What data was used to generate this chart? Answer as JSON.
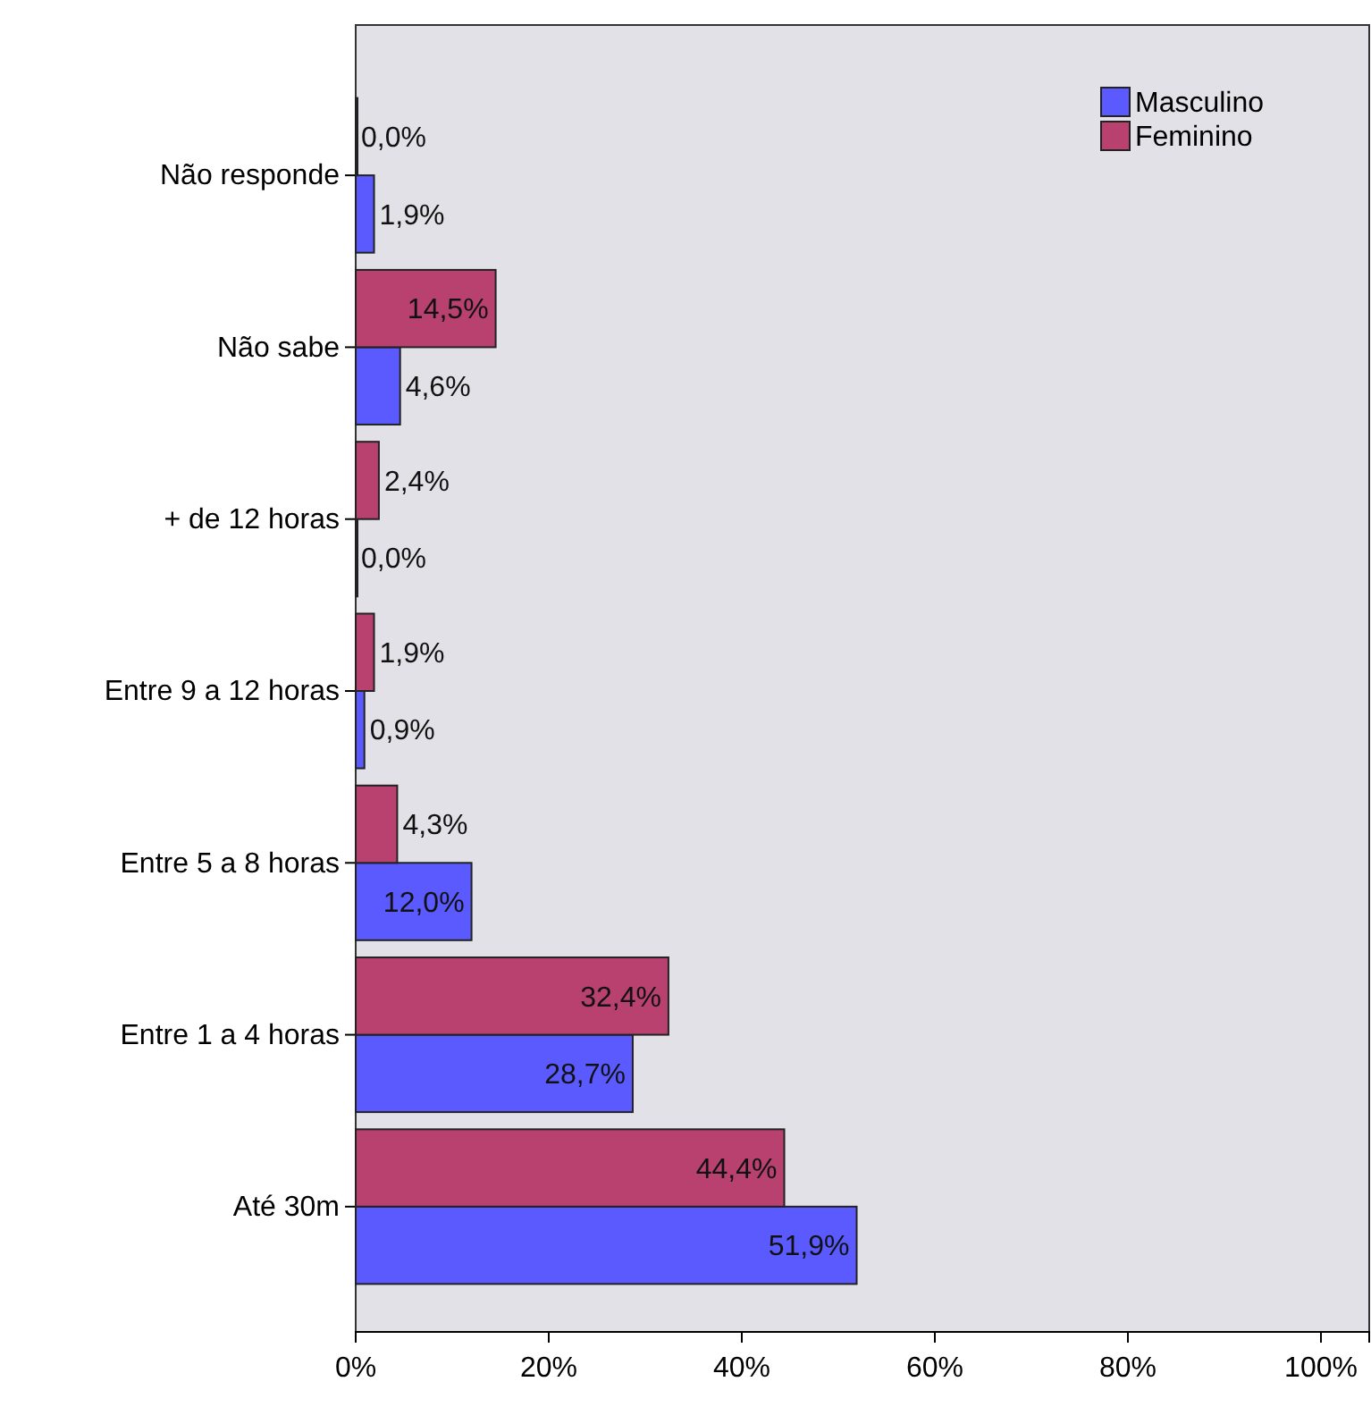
{
  "chart_data": {
    "type": "bar",
    "orientation": "horizontal",
    "categories": [
      "Não responde",
      "Não sabe",
      "+ de 12 horas",
      "Entre 9 a 12 horas",
      "Entre 5 a 8 horas",
      "Entre 1 a 4 horas",
      "Até 30m"
    ],
    "series": [
      {
        "name": "Masculino",
        "color": "#5a5aff",
        "values": [
          1.9,
          4.6,
          0.0,
          0.9,
          12.0,
          28.7,
          51.9
        ],
        "value_labels": [
          "1,9%",
          "4,6%",
          "0,0%",
          "0,9%",
          "12,0%",
          "28,7%",
          "51,9%"
        ]
      },
      {
        "name": "Feminino",
        "color": "#b8416f",
        "values": [
          0.0,
          14.5,
          2.4,
          1.9,
          4.3,
          32.4,
          44.4
        ],
        "value_labels": [
          "0,0%",
          "14,5%",
          "2,4%",
          "1,9%",
          "4,3%",
          "32,4%",
          "44,4%"
        ]
      }
    ],
    "xlim": [
      0,
      105
    ],
    "xticks": [
      {
        "value": 0,
        "label": "0%"
      },
      {
        "value": 20,
        "label": "20%"
      },
      {
        "value": 40,
        "label": "40%"
      },
      {
        "value": 60,
        "label": "60%"
      },
      {
        "value": 80,
        "label": "80%"
      },
      {
        "value": 100,
        "label": "100%"
      }
    ],
    "legend": "top right",
    "grid": false
  }
}
